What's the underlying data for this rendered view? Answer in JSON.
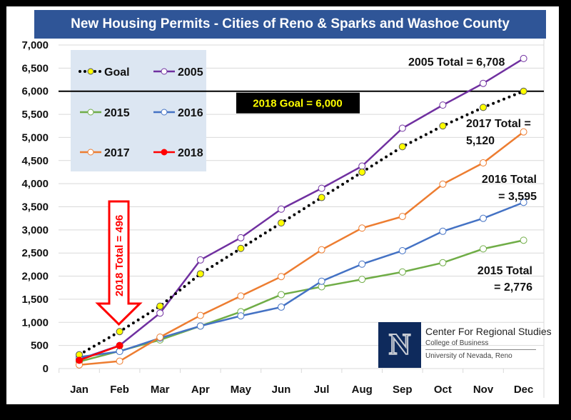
{
  "chart_data": {
    "type": "line",
    "title": "New Housing Permits - Cities of Reno & Sparks and Washoe County",
    "xlabel": "",
    "ylabel": "",
    "ylim": [
      0,
      7000
    ],
    "yticks": [
      0,
      500,
      1000,
      1500,
      2000,
      2500,
      3000,
      3500,
      4000,
      4500,
      5000,
      5500,
      6000,
      6500,
      7000
    ],
    "ytick_labels": [
      "0",
      "500",
      "1,000",
      "1,500",
      "2,000",
      "2,500",
      "3,000",
      "3,500",
      "4,000",
      "4,500",
      "5,000",
      "5,500",
      "6,000",
      "6,500",
      "7,000"
    ],
    "categories": [
      "Jan",
      "Feb",
      "Mar",
      "Apr",
      "May",
      "Jun",
      "Jul",
      "Aug",
      "Sep",
      "Oct",
      "Nov",
      "Dec"
    ],
    "grid": true,
    "legend_position": "top-left",
    "series": [
      {
        "name": "Goal",
        "color": "#000000",
        "marker_fill": "#ffff00",
        "style": "dotted",
        "values": [
          300,
          800,
          1350,
          2050,
          2600,
          3150,
          3700,
          4250,
          4800,
          5250,
          5650,
          6000
        ]
      },
      {
        "name": "2005",
        "color": "#7030a0",
        "marker_fill": "#ffffff",
        "style": "solid",
        "values": [
          200,
          500,
          1200,
          2350,
          2830,
          3450,
          3900,
          4380,
          5200,
          5700,
          6170,
          6708
        ]
      },
      {
        "name": "2015",
        "color": "#70ad47",
        "marker_fill": "#ffffff",
        "style": "solid",
        "values": [
          150,
          380,
          620,
          920,
          1230,
          1600,
          1770,
          1930,
          2090,
          2290,
          2590,
          2776
        ]
      },
      {
        "name": "2016",
        "color": "#4472c4",
        "marker_fill": "#ffffff",
        "style": "solid",
        "values": [
          250,
          370,
          660,
          920,
          1140,
          1330,
          1890,
          2260,
          2550,
          2970,
          3250,
          3595
        ]
      },
      {
        "name": "2017",
        "color": "#ed7d31",
        "marker_fill": "#ffffff",
        "style": "solid",
        "values": [
          80,
          160,
          680,
          1150,
          1570,
          1990,
          2570,
          3040,
          3290,
          3990,
          4450,
          5120
        ]
      },
      {
        "name": "2018",
        "color": "#ff0000",
        "marker_fill": "#ff0000",
        "style": "solid",
        "values": [
          180,
          496
        ]
      }
    ],
    "reference_line": {
      "value": 6000,
      "label": "2018 Goal = 6,000"
    },
    "annotations": [
      {
        "text": "2005 Total = 6,708"
      },
      {
        "text_lines": [
          "2017 Total =",
          "5,120"
        ]
      },
      {
        "text_lines": [
          "2016 Total",
          "= 3,595"
        ]
      },
      {
        "text_lines": [
          "2015 Total",
          "= 2,776"
        ]
      },
      {
        "text": "2018 Total = 496",
        "style": "red-down-arrow",
        "points_to": "Feb"
      }
    ]
  },
  "logo": {
    "letter": "N",
    "line1": "Center For Regional Studies",
    "line2": "College of Business",
    "line3": "University of Nevada, Reno"
  }
}
